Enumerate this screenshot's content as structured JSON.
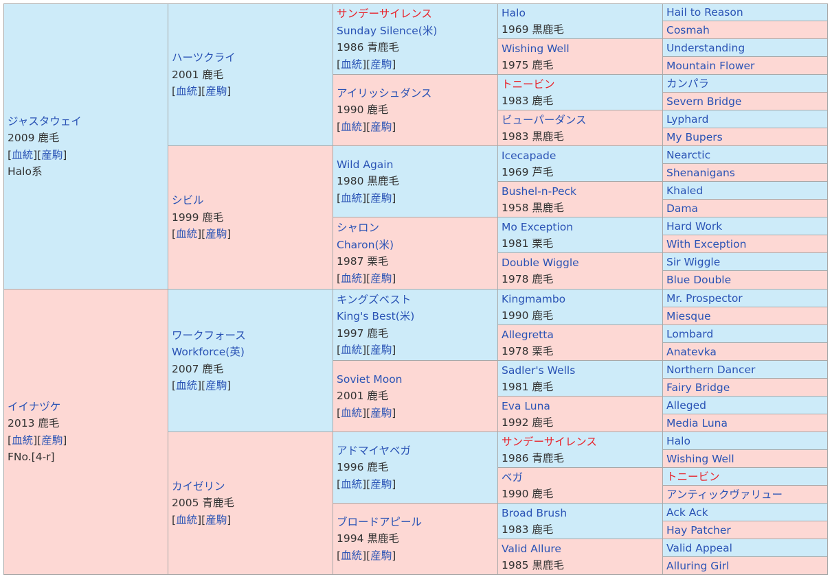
{
  "colors": {
    "sire_bg": "#cdebf9",
    "dam_bg": "#fdd8d4",
    "link": "#2a53b5",
    "highlight": "#e8232b",
    "text": "#333333",
    "border": "#a8a8a8"
  },
  "g1": [
    {
      "name": "ジャスタウェイ",
      "info": "2009 鹿毛",
      "link1": "血統",
      "link2": "産駒",
      "extra": "Halo系",
      "gender": "sire"
    },
    {
      "name": "イイナヅケ",
      "info": "2013 鹿毛",
      "link1": "血統",
      "link2": "産駒",
      "extra": "FNo.[4-r]",
      "gender": "dam"
    }
  ],
  "g2": [
    {
      "name": "ハーツクライ",
      "info": "2001 鹿毛",
      "link1": "血統",
      "link2": "産駒",
      "gender": "sire"
    },
    {
      "name": "シビル",
      "info": "1999 鹿毛",
      "link1": "血統",
      "link2": "産駒",
      "gender": "dam"
    },
    {
      "name": "ワークフォース",
      "name2": "Workforce(英)",
      "info": "2007 鹿毛",
      "link1": "血統",
      "link2": "産駒",
      "gender": "sire"
    },
    {
      "name": "カイゼリン",
      "info": "2005 青鹿毛",
      "link1": "血統",
      "link2": "産駒",
      "gender": "dam"
    }
  ],
  "g3": [
    {
      "name": "サンデーサイレンス",
      "red": true,
      "name2": "Sunday Silence(米)",
      "info": "1986 青鹿毛",
      "link1": "血統",
      "link2": "産駒",
      "gender": "sire"
    },
    {
      "name": "アイリッシュダンス",
      "info": "1990 鹿毛",
      "link1": "血統",
      "link2": "産駒",
      "gender": "dam"
    },
    {
      "name": "Wild Again",
      "info": "1980 黒鹿毛",
      "link1": "血統",
      "link2": "産駒",
      "gender": "sire"
    },
    {
      "name": "シャロン",
      "name2": "Charon(米)",
      "info": "1987 栗毛",
      "link1": "血統",
      "link2": "産駒",
      "gender": "dam"
    },
    {
      "name": "キングズベスト",
      "name2": "King's Best(米)",
      "info": "1997 鹿毛",
      "link1": "血統",
      "link2": "産駒",
      "gender": "sire"
    },
    {
      "name": "Soviet Moon",
      "info": "2001 鹿毛",
      "link1": "血統",
      "link2": "産駒",
      "gender": "dam"
    },
    {
      "name": "アドマイヤベガ",
      "info": "1996 鹿毛",
      "link1": "血統",
      "link2": "産駒",
      "gender": "sire"
    },
    {
      "name": "ブロードアピール",
      "info": "1994 黒鹿毛",
      "link1": "血統",
      "link2": "産駒",
      "gender": "dam"
    }
  ],
  "g4": [
    {
      "name": "Halo",
      "info": "1969 黒鹿毛",
      "gender": "sire"
    },
    {
      "name": "Wishing Well",
      "info": "1975 鹿毛",
      "gender": "dam"
    },
    {
      "name": "トニービン",
      "red": true,
      "info": "1983 鹿毛",
      "gender": "sire"
    },
    {
      "name": "ビューパーダンス",
      "info": "1983 黒鹿毛",
      "gender": "dam"
    },
    {
      "name": "Icecapade",
      "info": "1969 芦毛",
      "gender": "sire"
    },
    {
      "name": "Bushel-n-Peck",
      "info": "1958 黒鹿毛",
      "gender": "dam"
    },
    {
      "name": "Mo Exception",
      "info": "1981 栗毛",
      "gender": "sire"
    },
    {
      "name": "Double Wiggle",
      "info": "1978 鹿毛",
      "gender": "dam"
    },
    {
      "name": "Kingmambo",
      "info": "1990 鹿毛",
      "gender": "sire"
    },
    {
      "name": "Allegretta",
      "info": "1978 栗毛",
      "gender": "dam"
    },
    {
      "name": "Sadler's Wells",
      "info": "1981 鹿毛",
      "gender": "sire"
    },
    {
      "name": "Eva Luna",
      "info": "1992 鹿毛",
      "gender": "dam"
    },
    {
      "name": "サンデーサイレンス",
      "red": true,
      "info": "1986 青鹿毛",
      "gender": "sire"
    },
    {
      "name": "ベガ",
      "info": "1990 鹿毛",
      "gender": "dam"
    },
    {
      "name": "Broad Brush",
      "info": "1983 鹿毛",
      "gender": "sire"
    },
    {
      "name": "Valid Allure",
      "info": "1985 黒鹿毛",
      "gender": "dam"
    }
  ],
  "g5": [
    {
      "name": "Hail to Reason",
      "gender": "sire"
    },
    {
      "name": "Cosmah",
      "gender": "dam"
    },
    {
      "name": "Understanding",
      "gender": "sire"
    },
    {
      "name": "Mountain Flower",
      "gender": "dam"
    },
    {
      "name": "カンパラ",
      "gender": "sire"
    },
    {
      "name": "Severn Bridge",
      "gender": "dam"
    },
    {
      "name": "Lyphard",
      "gender": "sire"
    },
    {
      "name": "My Bupers",
      "gender": "dam"
    },
    {
      "name": "Nearctic",
      "gender": "sire"
    },
    {
      "name": "Shenanigans",
      "gender": "dam"
    },
    {
      "name": "Khaled",
      "gender": "sire"
    },
    {
      "name": "Dama",
      "gender": "dam"
    },
    {
      "name": "Hard Work",
      "gender": "sire"
    },
    {
      "name": "With Exception",
      "gender": "dam"
    },
    {
      "name": "Sir Wiggle",
      "gender": "sire"
    },
    {
      "name": "Blue Double",
      "gender": "dam"
    },
    {
      "name": "Mr. Prospector",
      "gender": "sire"
    },
    {
      "name": "Miesque",
      "gender": "dam"
    },
    {
      "name": "Lombard",
      "gender": "sire"
    },
    {
      "name": "Anatevka",
      "gender": "dam"
    },
    {
      "name": "Northern Dancer",
      "gender": "sire"
    },
    {
      "name": "Fairy Bridge",
      "gender": "dam"
    },
    {
      "name": "Alleged",
      "gender": "sire"
    },
    {
      "name": "Media Luna",
      "gender": "dam"
    },
    {
      "name": "Halo",
      "gender": "sire"
    },
    {
      "name": "Wishing Well",
      "gender": "dam"
    },
    {
      "name": "トニービン",
      "red": true,
      "gender": "sire"
    },
    {
      "name": "アンティックヴァリュー",
      "gender": "dam"
    },
    {
      "name": "Ack Ack",
      "gender": "sire"
    },
    {
      "name": "Hay Patcher",
      "gender": "dam"
    },
    {
      "name": "Valid Appeal",
      "gender": "sire"
    },
    {
      "name": "Alluring Girl",
      "gender": "dam"
    }
  ]
}
